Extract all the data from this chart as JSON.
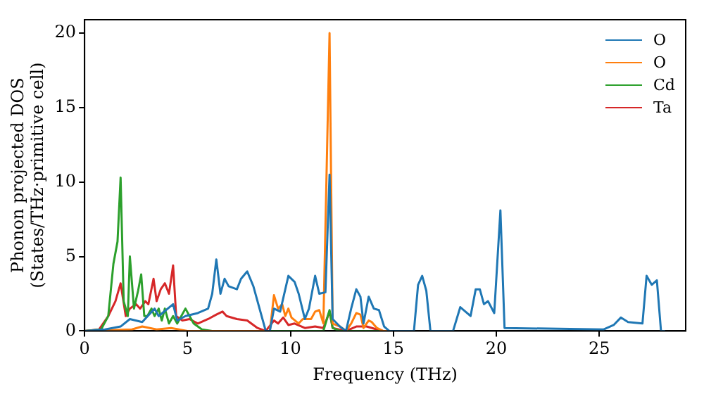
{
  "chart_data": {
    "type": "line",
    "xlabel": "Frequency (THz)",
    "ylabel": "Phonon projected DOS\n(States/THz·primitive cell)",
    "xlim": [
      0,
      29.2
    ],
    "ylim": [
      0,
      20.9
    ],
    "xticks": [
      0,
      5,
      10,
      15,
      20,
      25
    ],
    "yticks": [
      0,
      5,
      10,
      15,
      20
    ],
    "grid": false,
    "legend": "top right",
    "marker": "none",
    "line_style": "solid",
    "series": [
      {
        "name": "O",
        "color": "#1f77b4",
        "x": [
          0,
          1.0,
          1.75,
          2.2,
          2.8,
          3.4,
          3.6,
          4.3,
          4.5,
          4.9,
          5.5,
          6.0,
          6.2,
          6.4,
          6.6,
          6.8,
          7.0,
          7.4,
          7.6,
          7.9,
          8.2,
          8.6,
          8.8,
          9.0,
          9.2,
          9.5,
          9.9,
          10.2,
          10.4,
          10.7,
          10.9,
          11.2,
          11.4,
          11.7,
          11.9,
          12.05,
          12.4,
          12.7,
          12.95,
          13.2,
          13.4,
          13.55,
          13.8,
          14.05,
          14.3,
          14.55,
          14.8,
          16.0,
          16.2,
          16.4,
          16.6,
          16.8,
          17.9,
          18.25,
          18.5,
          18.75,
          19.0,
          19.2,
          19.4,
          19.6,
          19.9,
          20.2,
          20.4,
          25.2,
          25.7,
          26.05,
          26.4,
          27.1,
          27.3,
          27.55,
          27.8,
          28.0,
          28.2
        ],
        "values": [
          0,
          0.1,
          0.3,
          0.8,
          0.6,
          1.5,
          1.0,
          1.8,
          0.7,
          1.0,
          1.2,
          1.5,
          2.5,
          4.8,
          2.5,
          3.5,
          3.0,
          2.8,
          3.5,
          4.0,
          3.0,
          1.0,
          0,
          0,
          1.5,
          1.3,
          3.7,
          3.3,
          2.5,
          0.8,
          1.5,
          3.7,
          2.5,
          2.6,
          10.5,
          0.8,
          0.3,
          0,
          1.5,
          2.8,
          2.3,
          0.5,
          2.3,
          1.5,
          1.4,
          0.3,
          0,
          0,
          3.1,
          3.7,
          2.7,
          0,
          0,
          1.6,
          1.3,
          1.0,
          2.8,
          2.8,
          1.8,
          2.0,
          1.2,
          8.1,
          0.2,
          0.1,
          0.4,
          0.9,
          0.6,
          0.5,
          3.7,
          3.1,
          3.4,
          0,
          0
        ]
      },
      {
        "name": "O",
        "color": "#ff7f0e",
        "x": [
          0,
          2.3,
          2.8,
          3.5,
          4.2,
          5.0,
          9.0,
          9.2,
          9.4,
          9.6,
          9.75,
          9.9,
          10.05,
          10.4,
          10.6,
          11.0,
          11.2,
          11.4,
          11.6,
          11.9,
          12.05,
          12.4,
          12.7,
          12.95,
          13.2,
          13.4,
          13.55,
          13.8,
          13.95,
          14.2,
          14.5,
          15.0
        ],
        "values": [
          0,
          0.1,
          0.3,
          0.1,
          0.2,
          0,
          0,
          2.4,
          1.5,
          1.8,
          1.0,
          1.5,
          0.9,
          0.5,
          0.8,
          0.8,
          1.3,
          1.4,
          0.5,
          20,
          0.5,
          0.3,
          0,
          0.5,
          1.2,
          1.1,
          0.2,
          0.7,
          0.6,
          0.2,
          0,
          0
        ]
      },
      {
        "name": "Cd",
        "color": "#2ca02c",
        "x": [
          0,
          0.8,
          1.15,
          1.4,
          1.6,
          1.75,
          1.9,
          2.1,
          2.2,
          2.4,
          2.6,
          2.75,
          2.9,
          3.05,
          3.25,
          3.4,
          3.6,
          3.75,
          3.9,
          4.1,
          4.3,
          4.5,
          4.9,
          5.1,
          5.3,
          5.7,
          6.2,
          11.6,
          11.9,
          12.05,
          12.4,
          15.0
        ],
        "values": [
          0,
          0.1,
          1.0,
          4.5,
          6.0,
          10.3,
          2.0,
          1.0,
          5.0,
          1.5,
          2.7,
          3.8,
          1.0,
          1.0,
          1.5,
          1.0,
          1.5,
          0.7,
          1.5,
          0.5,
          1.0,
          0.5,
          1.5,
          1.0,
          0.5,
          0.1,
          0,
          0,
          1.4,
          0.2,
          0,
          0
        ]
      },
      {
        "name": "Ta",
        "color": "#d62728",
        "x": [
          0,
          0.7,
          1.15,
          1.5,
          1.75,
          2.0,
          2.2,
          2.5,
          2.7,
          2.95,
          3.1,
          3.35,
          3.5,
          3.7,
          3.9,
          4.1,
          4.3,
          4.45,
          4.75,
          5.1,
          5.5,
          6.0,
          6.4,
          6.7,
          6.9,
          7.4,
          7.9,
          8.4,
          8.8,
          9.2,
          9.4,
          9.65,
          9.9,
          10.2,
          10.7,
          11.2,
          11.6,
          11.9,
          12.05,
          12.7,
          13.2,
          13.7,
          14.2,
          14.5
        ],
        "values": [
          0,
          0.1,
          1.0,
          2.0,
          3.2,
          1.0,
          1.5,
          1.8,
          1.5,
          2.0,
          1.8,
          3.5,
          2.0,
          2.8,
          3.2,
          2.5,
          4.4,
          1.0,
          0.7,
          0.8,
          0.5,
          0.8,
          1.1,
          1.3,
          1.0,
          0.8,
          0.7,
          0.2,
          0,
          0.7,
          0.5,
          0.9,
          0.4,
          0.5,
          0.2,
          0.3,
          0.2,
          1.3,
          0.2,
          0,
          0.3,
          0.3,
          0.1,
          0
        ]
      }
    ]
  }
}
